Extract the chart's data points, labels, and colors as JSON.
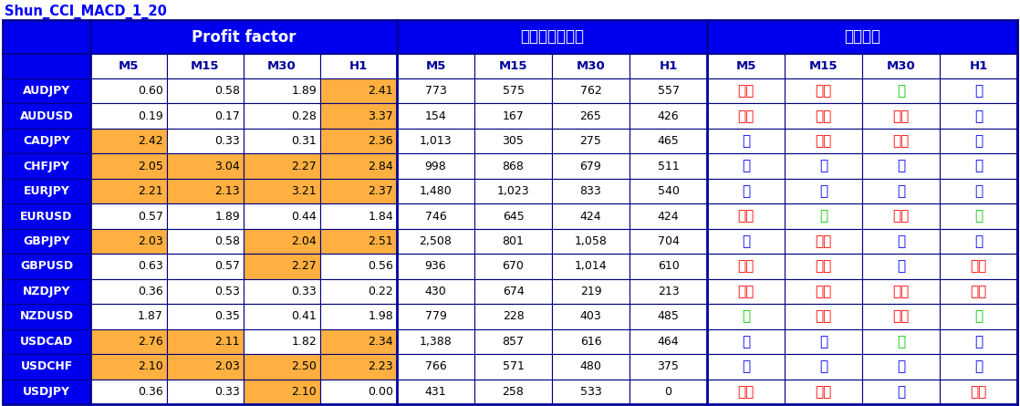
{
  "title": "Shun_CCI_MACD_1_20",
  "title_color": "#0000FF",
  "rows": [
    [
      "AUDJPY",
      "0.60",
      "0.58",
      "1.89",
      "2.41",
      "773",
      "575",
      "762",
      "557",
      "不可",
      "不可",
      "良",
      "優"
    ],
    [
      "AUDUSD",
      "0.19",
      "0.17",
      "0.28",
      "3.37",
      "154",
      "167",
      "265",
      "426",
      "不可",
      "不可",
      "不可",
      "優"
    ],
    [
      "CADJPY",
      "2.42",
      "0.33",
      "0.31",
      "2.36",
      "1,013",
      "305",
      "275",
      "465",
      "優",
      "不可",
      "不可",
      "優"
    ],
    [
      "CHFJPY",
      "2.05",
      "3.04",
      "2.27",
      "2.84",
      "998",
      "868",
      "679",
      "511",
      "優",
      "優",
      "優",
      "優"
    ],
    [
      "EURJPY",
      "2.21",
      "2.13",
      "3.21",
      "2.37",
      "1,480",
      "1,023",
      "833",
      "540",
      "優",
      "優",
      "優",
      "優"
    ],
    [
      "EURUSD",
      "0.57",
      "1.89",
      "0.44",
      "1.84",
      "746",
      "645",
      "424",
      "424",
      "不可",
      "良",
      "不可",
      "良"
    ],
    [
      "GBPJPY",
      "2.03",
      "0.58",
      "2.04",
      "2.51",
      "2,508",
      "801",
      "1,058",
      "704",
      "優",
      "不可",
      "優",
      "優"
    ],
    [
      "GBPUSD",
      "0.63",
      "0.57",
      "2.27",
      "0.56",
      "936",
      "670",
      "1,014",
      "610",
      "不可",
      "不可",
      "優",
      "不可"
    ],
    [
      "NZDJPY",
      "0.36",
      "0.53",
      "0.33",
      "0.22",
      "430",
      "674",
      "219",
      "213",
      "不可",
      "不可",
      "不可",
      "不可"
    ],
    [
      "NZDUSD",
      "1.87",
      "0.35",
      "0.41",
      "1.98",
      "779",
      "228",
      "403",
      "485",
      "良",
      "不可",
      "不可",
      "良"
    ],
    [
      "USDCAD",
      "2.76",
      "2.11",
      "1.82",
      "2.34",
      "1,388",
      "857",
      "616",
      "464",
      "優",
      "優",
      "良",
      "優"
    ],
    [
      "USDCHF",
      "2.10",
      "2.03",
      "2.50",
      "2.23",
      "766",
      "571",
      "480",
      "375",
      "優",
      "優",
      "優",
      "優"
    ],
    [
      "USDJPY",
      "0.36",
      "0.33",
      "2.10",
      "0.00",
      "431",
      "258",
      "533",
      "0",
      "不可",
      "不可",
      "優",
      "不可"
    ]
  ],
  "orange_bg": "#FFB040",
  "white_bg": "#FFFFFF",
  "recommendation_colors": {
    "優": "#0000FF",
    "良": "#00CC00",
    "不可": "#FF0000"
  },
  "header_bg": "#0000EE",
  "header_text": "#FFFFFF",
  "row_label_bg": "#0000EE",
  "row_label_text": "#FFFFFF",
  "subheader_bg": "#FFFFFF",
  "subheader_text": "#000099",
  "background": "#FFFFFF",
  "border_dark": "#000099",
  "pf_label": "Profit factor",
  "entry_label": "エントリー回数",
  "rec_label": "お勧め度",
  "sub_labels": [
    "M5",
    "M15",
    "M30",
    "H1"
  ]
}
